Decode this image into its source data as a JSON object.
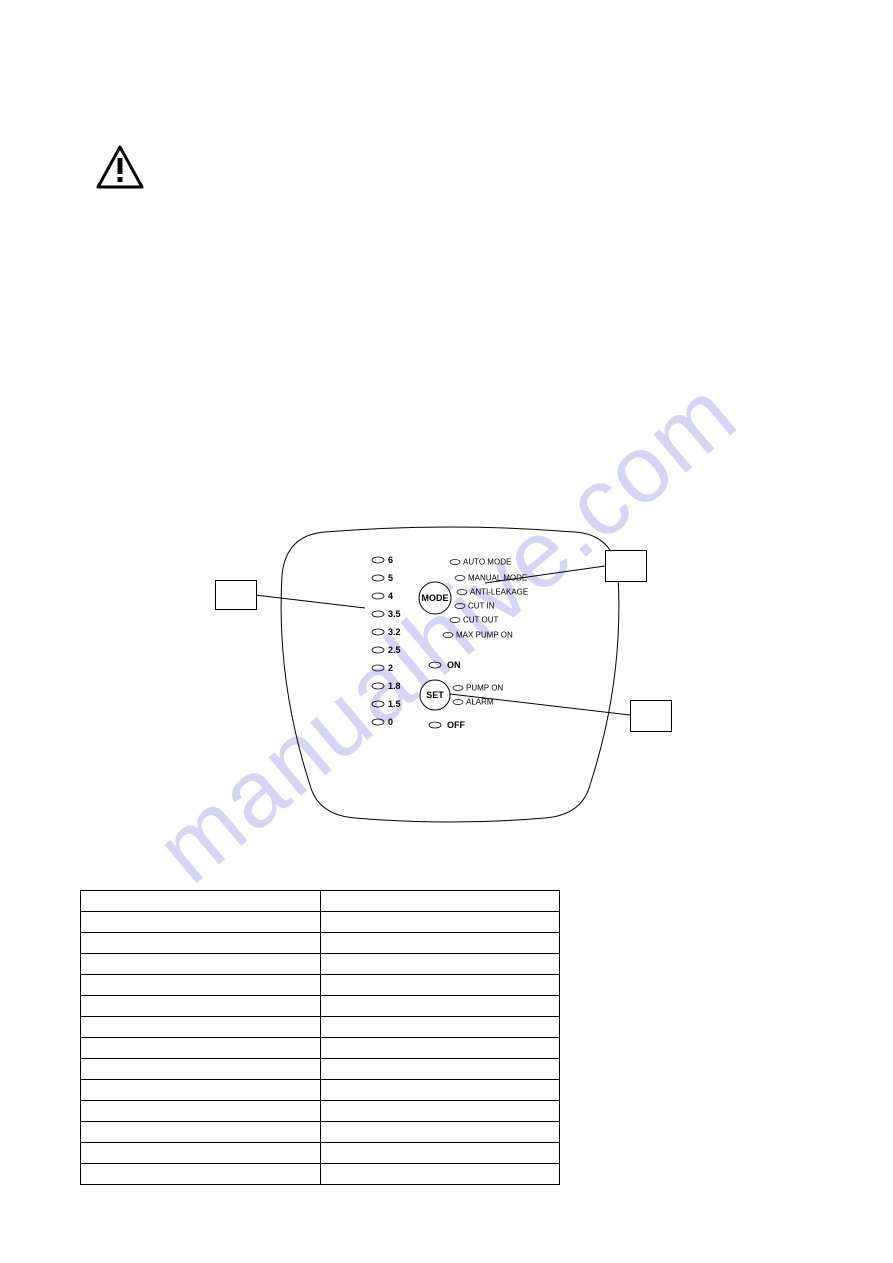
{
  "watermark": "manualhive.com",
  "panel": {
    "pressure_values": [
      "6",
      "5",
      "4",
      "3.5",
      "3.2",
      "2.5",
      "2",
      "1.8",
      "1.5",
      "0"
    ],
    "mode_labels": [
      "AUTO MODE",
      "MANUAL MODE",
      "ANTI-LEAKAGE",
      "CUT IN",
      "CUT OUT",
      "MAX PUMP ON"
    ],
    "on_label": "ON",
    "set_labels": [
      "PUMP ON",
      "ALARM"
    ],
    "off_label": "OFF",
    "mode_button": "MODE",
    "set_button": "SET"
  },
  "callouts": {
    "left": "",
    "right_top": "",
    "right_bottom": ""
  },
  "table": {
    "rows": 14,
    "cols": 2
  }
}
